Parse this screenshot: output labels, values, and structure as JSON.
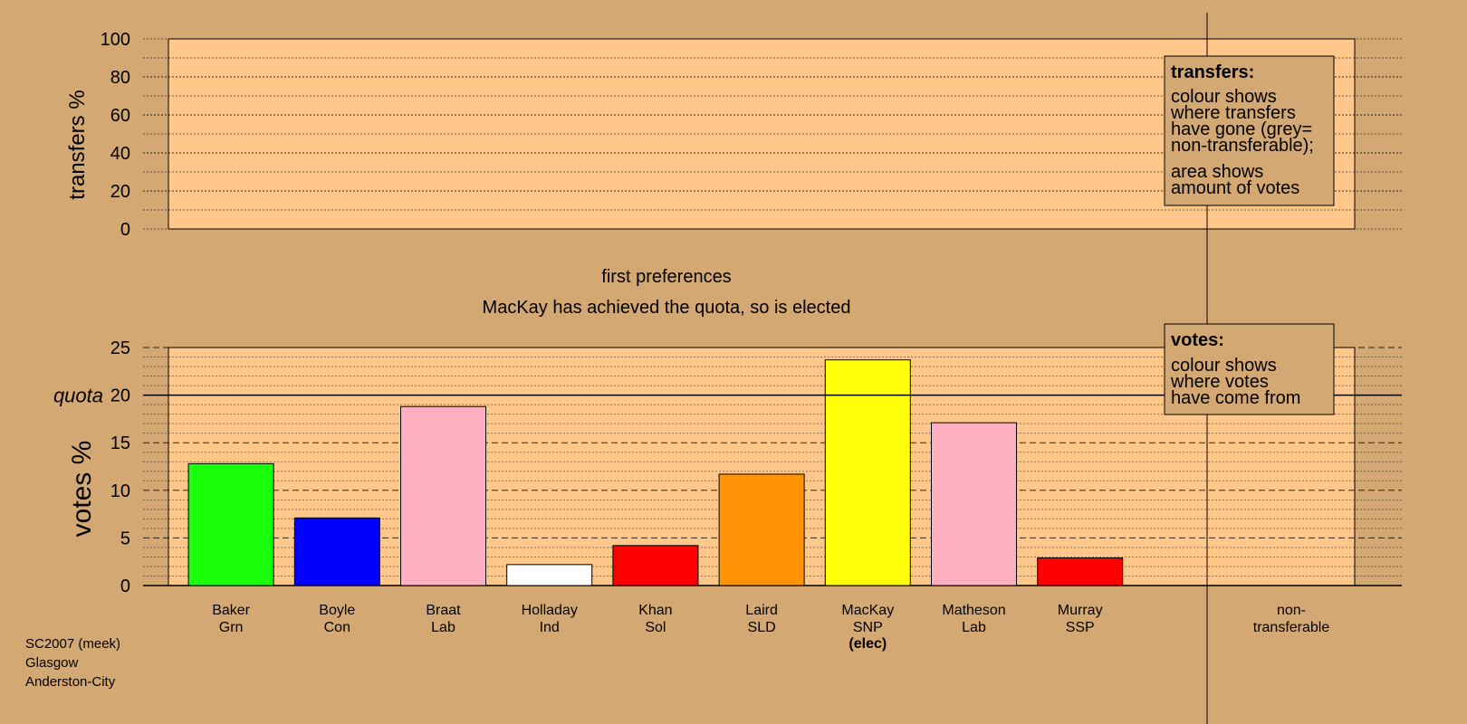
{
  "colors": {
    "background": "#d4a873",
    "panel": "#ffc88a",
    "legend_box": "#d4a873",
    "Grn": "#1aff0a",
    "Con": "#0000ff",
    "Lab": "#ffb0c0",
    "Ind": "#ffffff",
    "Sol": "#ff0000",
    "SLD": "#ff9408",
    "SNP": "#ffff0a",
    "SSP": "#ff0000"
  },
  "headings": {
    "stage": "first preferences",
    "status": "MacKay has achieved the quota, so is elected"
  },
  "legends": {
    "transfers": {
      "title": "transfers:",
      "lines": [
        "colour shows",
        "where transfers",
        "have gone (grey=",
        "non-transferable);",
        "area shows",
        "amount of votes"
      ]
    },
    "votes": {
      "title": "votes:",
      "lines": [
        "colour shows",
        "where votes",
        "have come from"
      ]
    }
  },
  "footer": {
    "lines": [
      "SC2007 (meek)",
      "Glasgow",
      "Anderston-City"
    ]
  },
  "chart_data": [
    {
      "type": "bar",
      "ylabel": "transfers %",
      "ylim": [
        0,
        100
      ],
      "yticks": [
        0,
        20,
        40,
        60,
        80,
        100
      ],
      "categories": [
        "Baker Grn",
        "Boyle Con",
        "Braat Lab",
        "Holladay Ind",
        "Khan Sol",
        "Laird SLD",
        "MacKay SNP",
        "Matheson Lab",
        "Murray SSP",
        "non-transferable"
      ],
      "values": [
        0,
        0,
        0,
        0,
        0,
        0,
        0,
        0,
        0,
        0
      ],
      "grid": true
    },
    {
      "type": "bar",
      "ylabel": "votes %",
      "ylim": [
        0,
        25
      ],
      "yticks": [
        0,
        5,
        10,
        15,
        20,
        25
      ],
      "quota": 20,
      "quota_label": "quota",
      "grid": true,
      "categories": [
        {
          "name": "Baker",
          "party": "Grn",
          "value": 12.8
        },
        {
          "name": "Boyle",
          "party": "Con",
          "value": 7.1
        },
        {
          "name": "Braat",
          "party": "Lab",
          "value": 18.8
        },
        {
          "name": "Holladay",
          "party": "Ind",
          "value": 2.2
        },
        {
          "name": "Khan",
          "party": "Sol",
          "value": 4.2
        },
        {
          "name": "Laird",
          "party": "SLD",
          "value": 11.7
        },
        {
          "name": "MacKay",
          "party": "SNP",
          "value": 23.7,
          "note": "(elec)"
        },
        {
          "name": "Matheson",
          "party": "Lab",
          "value": 17.1
        },
        {
          "name": "Murray",
          "party": "SSP",
          "value": 2.9
        }
      ],
      "extra_column": {
        "line1": "non-",
        "line2": "transferable",
        "value": 0
      }
    }
  ]
}
